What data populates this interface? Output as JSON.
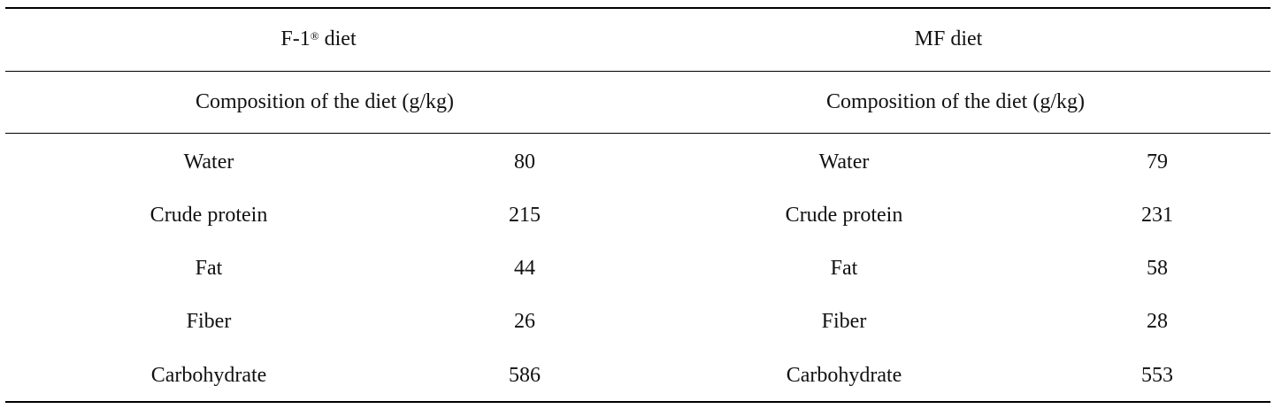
{
  "table": {
    "groups": [
      {
        "name_prefix": "F-1",
        "name_sup": "®",
        "name_suffix": " diet",
        "subheader": "Composition of the diet (g/kg)",
        "rows": [
          {
            "label": "Water",
            "value": "80"
          },
          {
            "label": "Crude protein",
            "value": "215"
          },
          {
            "label": "Fat",
            "value": "44"
          },
          {
            "label": "Fiber",
            "value": "26"
          },
          {
            "label": "Carbohydrate",
            "value": "586"
          }
        ]
      },
      {
        "name_prefix": "MF diet",
        "name_sup": "",
        "name_suffix": "",
        "subheader": "Composition of the diet (g/kg)",
        "rows": [
          {
            "label": "Water",
            "value": "79"
          },
          {
            "label": "Crude protein",
            "value": "231"
          },
          {
            "label": "Fat",
            "value": "58"
          },
          {
            "label": "Fiber",
            "value": "28"
          },
          {
            "label": "Carbohydrate",
            "value": "553"
          }
        ]
      }
    ]
  }
}
